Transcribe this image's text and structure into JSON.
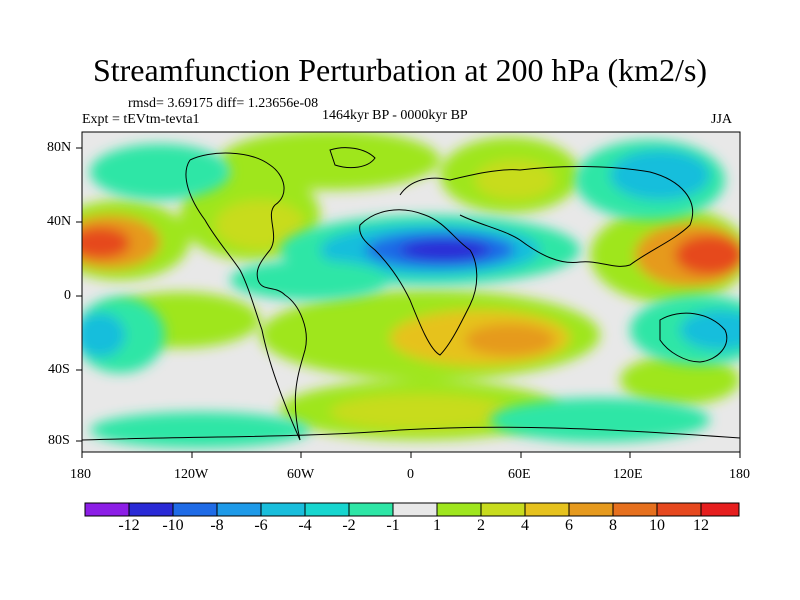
{
  "title": "Streamfunction Perturbation at 200 hPa (km2/s)",
  "stats": "rmsd= 3.69175 diff= 1.23656e-08",
  "experiment": "Expt = tEVtm-tevta1",
  "period": "1464kyr BP - 0000kyr BP",
  "season": "JJA",
  "map": {
    "lon_ticks": [
      "180",
      "120W",
      "60W",
      "0",
      "60E",
      "120E",
      "180"
    ],
    "lat_ticks": [
      "80N",
      "40N",
      "0",
      "40S",
      "80S"
    ],
    "projection": "cylindrical equidistant"
  },
  "colorbar": {
    "labels": [
      "-12",
      "-10",
      "-8",
      "-6",
      "-4",
      "-2",
      "-1",
      "1",
      "2",
      "4",
      "6",
      "8",
      "10",
      "12"
    ],
    "colors": [
      "#8c1ee6",
      "#2a2ad6",
      "#1f6be6",
      "#1e9ae8",
      "#19bedc",
      "#17d6cf",
      "#2ee6a6",
      "#e8e8e8",
      "#9fe61e",
      "#c8dc1e",
      "#e6c21e",
      "#e69a1e",
      "#e6701e",
      "#e6481e",
      "#e61e1e"
    ]
  }
}
